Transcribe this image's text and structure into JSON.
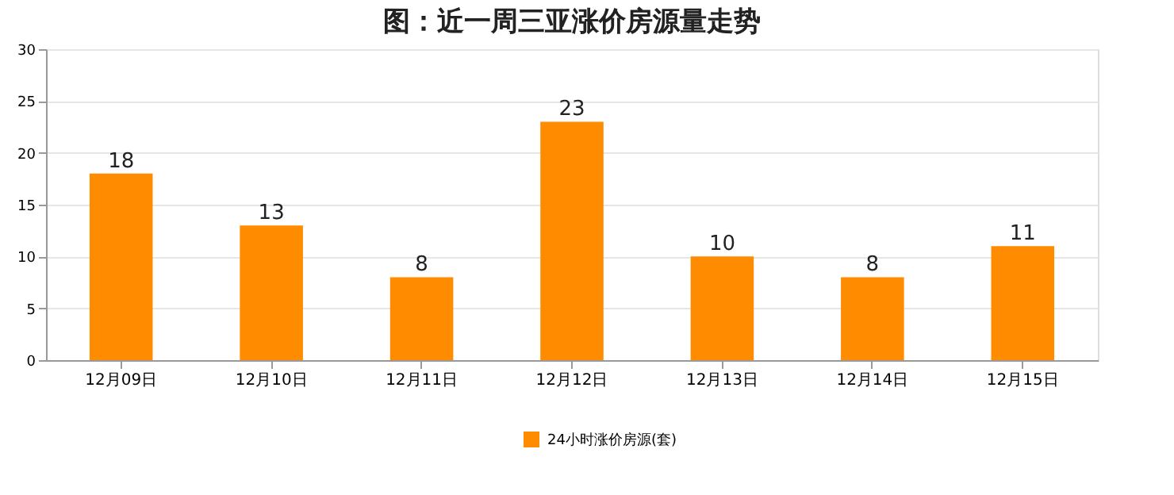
{
  "chart_data": {
    "type": "bar",
    "title": "图：近一周三亚涨价房源量走势",
    "categories": [
      "12月09日",
      "12月10日",
      "12月11日",
      "12月12日",
      "12月13日",
      "12月14日",
      "12月15日"
    ],
    "series": [
      {
        "name": "24小时涨价房源(套)",
        "color": "#ff8c00",
        "values": [
          18,
          13,
          8,
          23,
          10,
          8,
          11
        ]
      }
    ],
    "ylim": [
      0,
      30
    ],
    "yticks": [
      0,
      5,
      10,
      15,
      20,
      25,
      30
    ],
    "grid": "y",
    "legend": "bottom",
    "data_labels": true
  }
}
